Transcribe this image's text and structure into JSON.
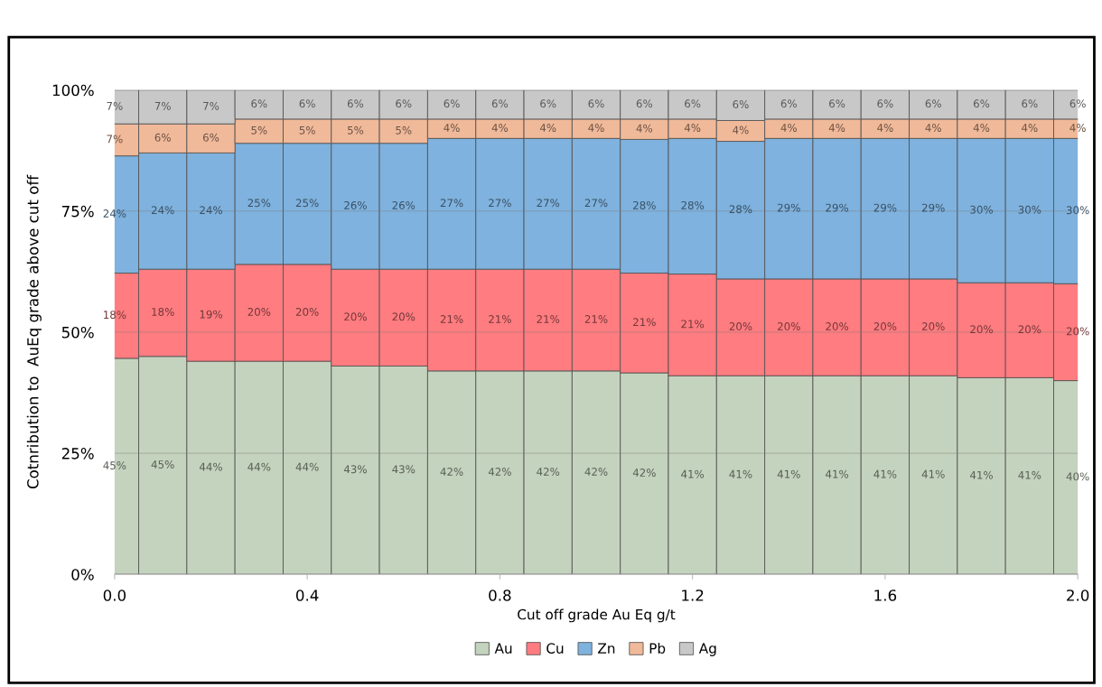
{
  "chart_data": {
    "type": "bar",
    "stacked": true,
    "xlabel": "Cut off grade Au Eq g/t",
    "ylabel": "Cotnribution to  AuEq grade above cut off",
    "x": [
      0.0,
      0.1,
      0.2,
      0.3,
      0.4,
      0.5,
      0.6,
      0.7,
      0.8,
      0.9,
      1.0,
      1.1,
      1.2,
      1.3,
      1.4,
      1.5,
      1.6,
      1.7,
      1.8,
      1.9,
      2.0
    ],
    "xlim": [
      0.0,
      2.0
    ],
    "xticks": [
      {
        "value": 0.0,
        "label": "0.0"
      },
      0.4,
      0.8,
      1.2,
      1.6,
      {
        "value": 2.0,
        "label": "2.0"
      }
    ],
    "ylim": [
      0,
      100
    ],
    "yticks": [
      {
        "value": 0,
        "label": "0%"
      },
      {
        "value": 25,
        "label": "25%"
      },
      {
        "value": 50,
        "label": "50%"
      },
      {
        "value": 75,
        "label": "75%"
      },
      {
        "value": 100,
        "label": "100%"
      }
    ],
    "grid": "y",
    "legend": "bottom",
    "series": [
      {
        "name": "Au",
        "color": "#c4d3bd",
        "values": [
          44.6,
          45,
          44,
          44,
          44,
          43,
          43,
          42,
          42,
          42,
          42,
          41.6,
          41,
          41,
          41,
          41,
          41,
          41,
          40.6,
          40.6,
          40
        ],
        "value_labels": [
          "45%",
          "45%",
          "44%",
          "44%",
          "44%",
          "43%",
          "43%",
          "42%",
          "42%",
          "42%",
          "42%",
          "42%",
          "41%",
          "41%",
          "41%",
          "41%",
          "41%",
          "41%",
          "41%",
          "41%",
          "40%"
        ]
      },
      {
        "name": "Cu",
        "color": "#ff7c80",
        "values": [
          17.6,
          18,
          19,
          20,
          20,
          20,
          20,
          21,
          21,
          21,
          21,
          20.6,
          21,
          20,
          20,
          20,
          20,
          20,
          19.6,
          19.6,
          20
        ],
        "value_labels": [
          "18%",
          "18%",
          "19%",
          "20%",
          "20%",
          "20%",
          "20%",
          "21%",
          "21%",
          "21%",
          "21%",
          "21%",
          "21%",
          "20%",
          "20%",
          "20%",
          "20%",
          "20%",
          "20%",
          "20%",
          "20%"
        ]
      },
      {
        "name": "Zn",
        "color": "#7fb2de",
        "values": [
          24.2,
          24,
          24,
          25,
          25,
          26,
          26,
          27,
          27,
          27,
          27,
          27.6,
          28,
          28.4,
          29,
          29,
          29,
          29,
          29.8,
          29.8,
          30
        ],
        "value_labels": [
          "24%",
          "24%",
          "24%",
          "25%",
          "25%",
          "26%",
          "26%",
          "27%",
          "27%",
          "27%",
          "27%",
          "28%",
          "28%",
          "28%",
          "29%",
          "29%",
          "29%",
          "29%",
          "30%",
          "30%",
          "30%"
        ]
      },
      {
        "name": "Pb",
        "color": "#f0b999",
        "values": [
          6.6,
          6,
          6,
          5,
          5,
          5,
          5,
          4,
          4,
          4,
          4,
          4.2,
          4,
          4.3,
          4,
          4,
          4,
          4,
          4,
          4,
          4
        ],
        "value_labels": [
          "7%",
          "6%",
          "6%",
          "5%",
          "5%",
          "5%",
          "5%",
          "4%",
          "4%",
          "4%",
          "4%",
          "4%",
          "4%",
          "4%",
          "4%",
          "4%",
          "4%",
          "4%",
          "4%",
          "4%",
          "4%"
        ]
      },
      {
        "name": "Ag",
        "color": "#c8c8c8",
        "values": [
          7.0,
          7,
          7,
          6,
          6,
          6,
          6,
          6,
          6,
          6,
          6,
          6,
          6,
          6.3,
          6,
          6,
          6,
          6,
          6,
          6,
          6
        ],
        "value_labels": [
          "7%",
          "7%",
          "7%",
          "6%",
          "6%",
          "6%",
          "6%",
          "6%",
          "6%",
          "6%",
          "6%",
          "6%",
          "6%",
          "6%",
          "6%",
          "6%",
          "6%",
          "6%",
          "6%",
          "6%",
          "6%"
        ]
      }
    ]
  }
}
